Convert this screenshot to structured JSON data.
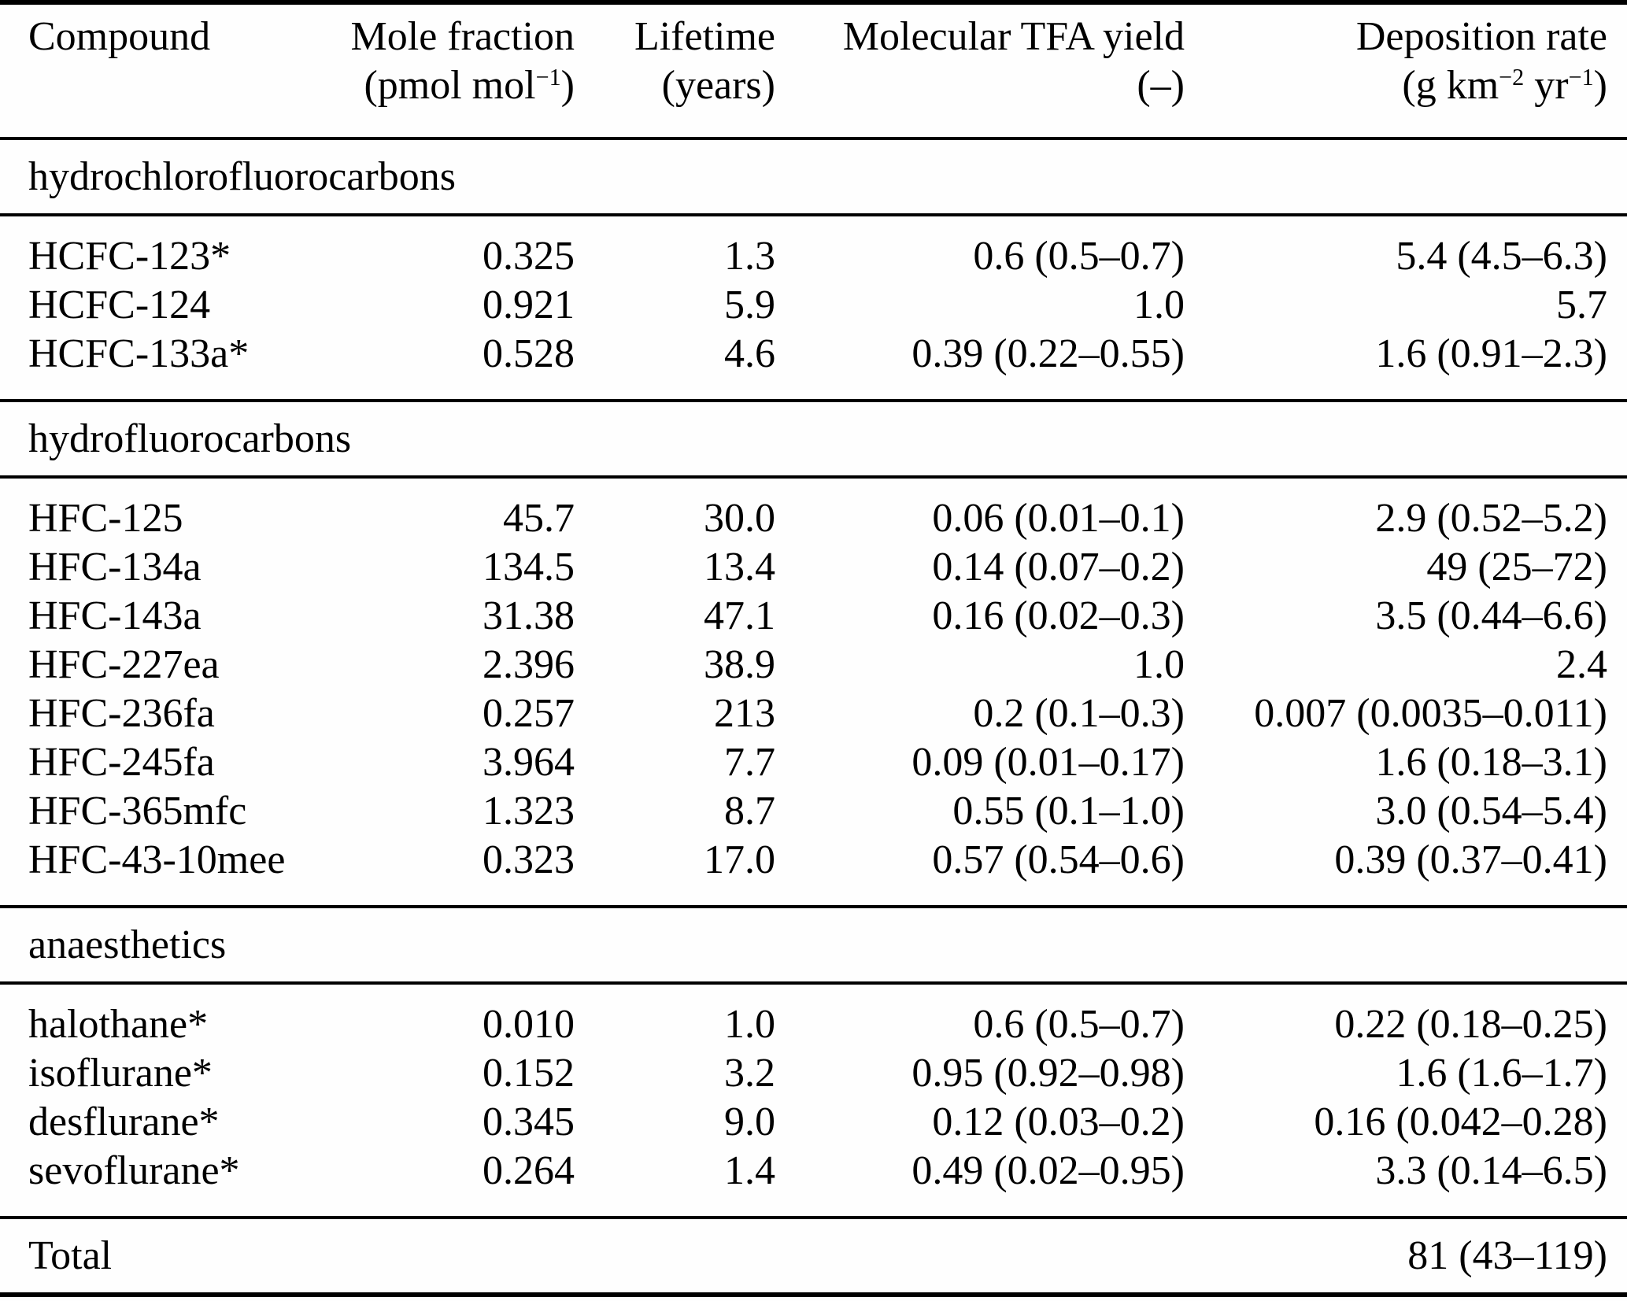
{
  "header": {
    "compound": {
      "label": "Compound"
    },
    "mole_fraction": {
      "label": "Mole fraction",
      "unit_base": "(pmol mol",
      "unit_sup": "−1",
      "unit_close": ")"
    },
    "lifetime": {
      "label": "Lifetime",
      "unit": "(years)"
    },
    "tfa_yield": {
      "label": "Molecular TFA yield",
      "unit": "(–)"
    },
    "deposition": {
      "label": "Deposition rate",
      "unit_base": "(g km",
      "unit_sup1": "−2",
      "unit_mid": " yr",
      "unit_sup2": "−1",
      "unit_close": ")"
    }
  },
  "sections": [
    {
      "label": "hydrochlorofluorocarbons",
      "rows": [
        {
          "compound": "HCFC-123*",
          "mole_fraction": "0.325",
          "lifetime": "1.3",
          "tfa_yield": "0.6 (0.5–0.7)",
          "deposition": "5.4 (4.5–6.3)"
        },
        {
          "compound": "HCFC-124",
          "mole_fraction": "0.921",
          "lifetime": "5.9",
          "tfa_yield": "1.0",
          "deposition": "5.7"
        },
        {
          "compound": "HCFC-133a*",
          "mole_fraction": "0.528",
          "lifetime": "4.6",
          "tfa_yield": "0.39 (0.22–0.55)",
          "deposition": "1.6 (0.91–2.3)"
        }
      ]
    },
    {
      "label": "hydrofluorocarbons",
      "rows": [
        {
          "compound": "HFC-125",
          "mole_fraction": "45.7",
          "lifetime": "30.0",
          "tfa_yield": "0.06 (0.01–0.1)",
          "deposition": "2.9 (0.52–5.2)"
        },
        {
          "compound": "HFC-134a",
          "mole_fraction": "134.5",
          "lifetime": "13.4",
          "tfa_yield": "0.14 (0.07–0.2)",
          "deposition": "49 (25–72)"
        },
        {
          "compound": "HFC-143a",
          "mole_fraction": "31.38",
          "lifetime": "47.1",
          "tfa_yield": "0.16 (0.02–0.3)",
          "deposition": "3.5 (0.44–6.6)"
        },
        {
          "compound": "HFC-227ea",
          "mole_fraction": "2.396",
          "lifetime": "38.9",
          "tfa_yield": "1.0",
          "deposition": "2.4"
        },
        {
          "compound": "HFC-236fa",
          "mole_fraction": "0.257",
          "lifetime": "213",
          "tfa_yield": "0.2 (0.1–0.3)",
          "deposition": "0.007 (0.0035–0.011)"
        },
        {
          "compound": "HFC-245fa",
          "mole_fraction": "3.964",
          "lifetime": "7.7",
          "tfa_yield": "0.09 (0.01–0.17)",
          "deposition": "1.6 (0.18–3.1)"
        },
        {
          "compound": "HFC-365mfc",
          "mole_fraction": "1.323",
          "lifetime": "8.7",
          "tfa_yield": "0.55 (0.1–1.0)",
          "deposition": "3.0 (0.54–5.4)"
        },
        {
          "compound": "HFC-43-10mee",
          "mole_fraction": "0.323",
          "lifetime": "17.0",
          "tfa_yield": "0.57 (0.54–0.6)",
          "deposition": "0.39 (0.37–0.41)"
        }
      ]
    },
    {
      "label": "anaesthetics",
      "rows": [
        {
          "compound": "halothane*",
          "mole_fraction": "0.010",
          "lifetime": "1.0",
          "tfa_yield": "0.6 (0.5–0.7)",
          "deposition": "0.22 (0.18–0.25)"
        },
        {
          "compound": "isoflurane*",
          "mole_fraction": "0.152",
          "lifetime": "3.2",
          "tfa_yield": "0.95 (0.92–0.98)",
          "deposition": "1.6 (1.6–1.7)"
        },
        {
          "compound": "desflurane*",
          "mole_fraction": "0.345",
          "lifetime": "9.0",
          "tfa_yield": "0.12 (0.03–0.2)",
          "deposition": "0.16 (0.042–0.28)"
        },
        {
          "compound": "sevoflurane*",
          "mole_fraction": "0.264",
          "lifetime": "1.4",
          "tfa_yield": "0.49 (0.02–0.95)",
          "deposition": "3.3 (0.14–6.5)"
        }
      ]
    }
  ],
  "total": {
    "label": "Total",
    "deposition": "81 (43–119)"
  }
}
